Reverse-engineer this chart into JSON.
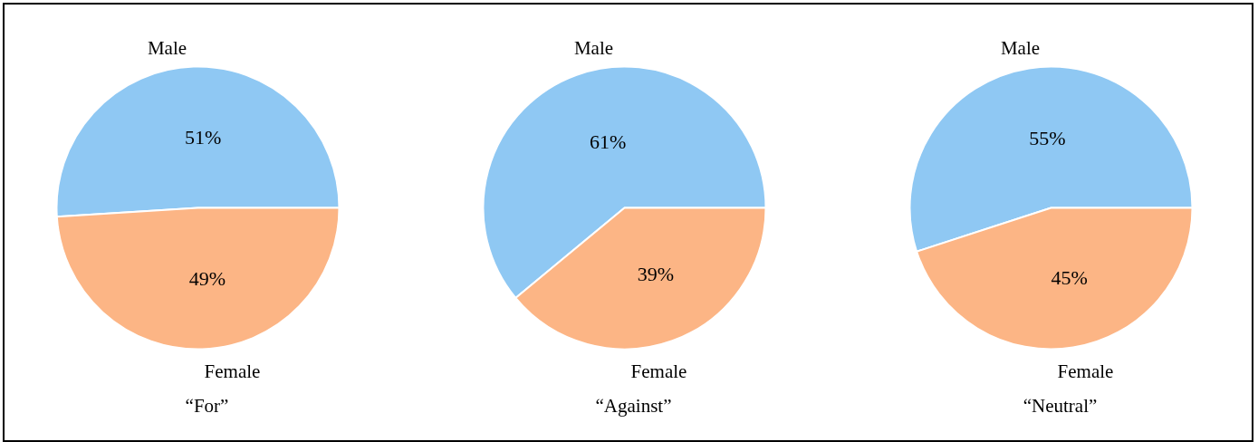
{
  "chart_data": [
    {
      "type": "pie",
      "title": "“For”",
      "categories": [
        "Male",
        "Female"
      ],
      "values": [
        51,
        49
      ],
      "colors": [
        "#8fc8f3",
        "#fcb585"
      ],
      "value_labels": [
        "51%",
        "49%"
      ]
    },
    {
      "type": "pie",
      "title": "“Against”",
      "categories": [
        "Male",
        "Female"
      ],
      "values": [
        61,
        39
      ],
      "colors": [
        "#8fc8f3",
        "#fcb585"
      ],
      "value_labels": [
        "61%",
        "39%"
      ]
    },
    {
      "type": "pie",
      "title": "“Neutral”",
      "categories": [
        "Male",
        "Female"
      ],
      "values": [
        55,
        45
      ],
      "colors": [
        "#8fc8f3",
        "#fcb585"
      ],
      "value_labels": [
        "55%",
        "45%"
      ]
    }
  ]
}
